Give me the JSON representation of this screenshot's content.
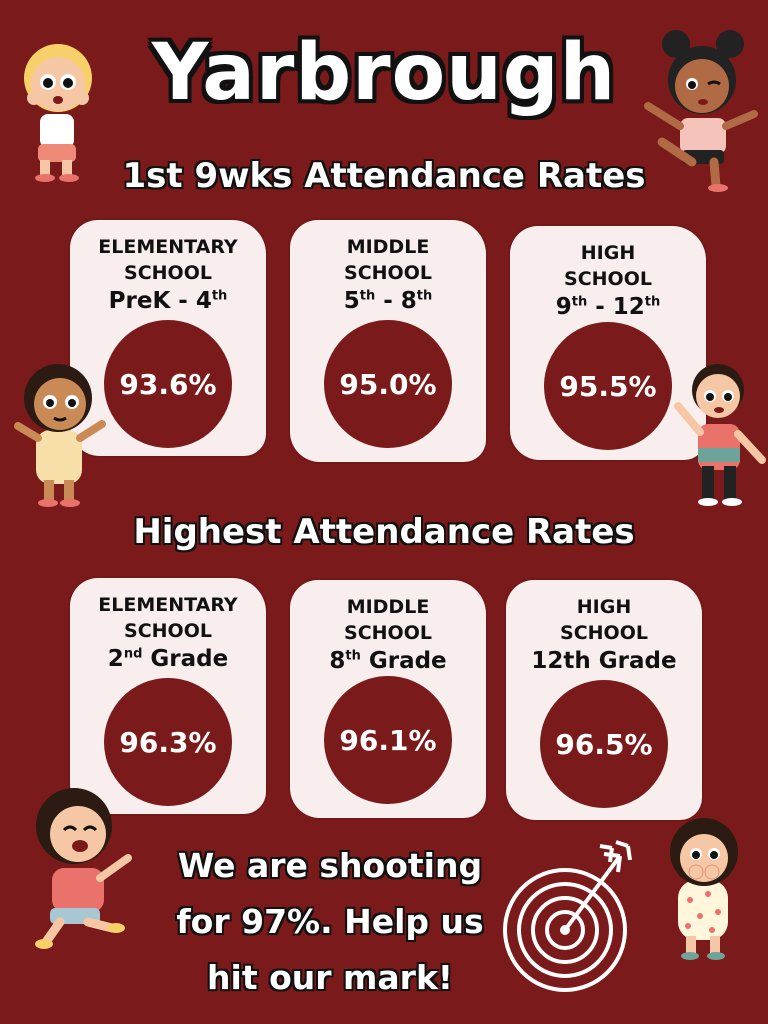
{
  "title": "Yarbrough",
  "section1": {
    "heading": "1st 9wks Attendance Rates",
    "cards": [
      {
        "label_line1": "ELEMENTARY",
        "label_line2": "SCHOOL",
        "grade_a": "PreK - 4",
        "grade_a_sup": "th",
        "grade_b": "",
        "grade_b_sup": "",
        "rate": "93.6%"
      },
      {
        "label_line1": "MIDDLE",
        "label_line2": "SCHOOL",
        "grade_a": "5",
        "grade_a_sup": "th",
        "grade_b": " - 8",
        "grade_b_sup": "th",
        "rate": "95.0%"
      },
      {
        "label_line1": "HIGH",
        "label_line2": "SCHOOL",
        "grade_a": "9",
        "grade_a_sup": "th",
        "grade_b": " - 12",
        "grade_b_sup": "th",
        "rate": "95.5%"
      }
    ]
  },
  "section2": {
    "heading": "Highest Attendance Rates",
    "cards": [
      {
        "label_line1": "ELEMENTARY",
        "label_line2": "SCHOOL",
        "grade_a": "2",
        "grade_a_sup": "nd",
        "grade_b": " Grade",
        "grade_b_sup": "",
        "rate": "96.3%"
      },
      {
        "label_line1": "MIDDLE",
        "label_line2": "SCHOOL",
        "grade_a": "8",
        "grade_a_sup": "th",
        "grade_b": " Grade",
        "grade_b_sup": "",
        "rate": "96.1%"
      },
      {
        "label_line1": "HIGH",
        "label_line2": "SCHOOL",
        "grade_a": "12th Grade",
        "grade_a_sup": "",
        "grade_b": "",
        "grade_b_sup": "",
        "rate": "96.5%"
      }
    ]
  },
  "footer": {
    "line1": "We are shooting",
    "line2": "for 97%. Help us",
    "line3": "hit our mark!"
  },
  "colors": {
    "background": "#7a1a1a",
    "card": "#f8eeee",
    "circle": "#7a1a1a",
    "text_light": "#ffffff",
    "text_dark": "#111111"
  },
  "icons": [
    "kid-blonde-illustration",
    "kid-waving-illustration",
    "kid-girl-illustration",
    "kid-boy-illustration",
    "kid-laughing-illustration",
    "kid-shy-illustration",
    "target-arrow-icon"
  ]
}
